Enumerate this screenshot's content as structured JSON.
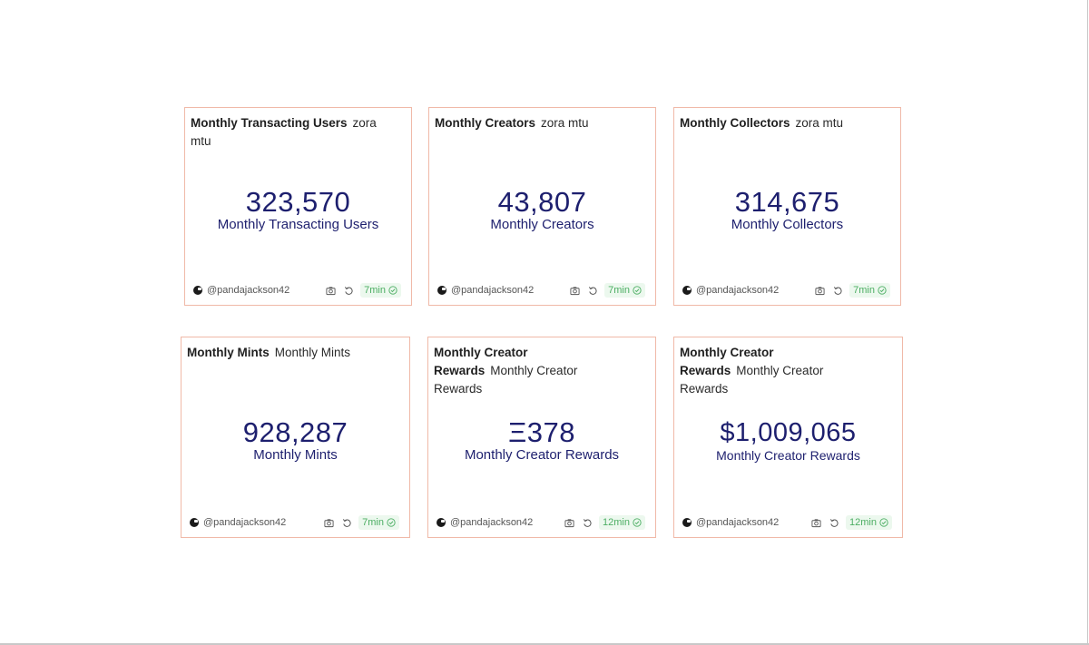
{
  "colors": {
    "border": "#f0b9a8",
    "value": "#1d1f6e",
    "badge_bg": "#ecf8ee",
    "badge_text": "#4cae63"
  },
  "cards": [
    {
      "title": "Monthly Transacting Users",
      "subtitle": "zora mtu",
      "value": "323,570",
      "label": "Monthly Transacting Users",
      "author": "@pandajackson42",
      "age": "7min"
    },
    {
      "title": "Monthly Creators",
      "subtitle": "zora mtu",
      "value": "43,807",
      "label": "Monthly Creators",
      "author": "@pandajackson42",
      "age": "7min"
    },
    {
      "title": "Monthly Collectors",
      "subtitle": "zora mtu",
      "value": "314,675",
      "label": "Monthly Collectors",
      "author": "@pandajackson42",
      "age": "7min"
    },
    {
      "title": "Monthly Mints",
      "subtitle": "Monthly Mints",
      "value": "928,287",
      "label": "Monthly Mints",
      "author": "@pandajackson42",
      "age": "7min"
    },
    {
      "title": "Monthly Creator Rewards",
      "subtitle": "Monthly Creator Rewards",
      "value": "Ξ378",
      "label": "Monthly Creator Rewards",
      "author": "@pandajackson42",
      "age": "12min"
    },
    {
      "title": "Monthly Creator Rewards",
      "subtitle": "Monthly Creator Rewards",
      "value": "$1,009,065",
      "label": "Monthly Creator Rewards",
      "author": "@pandajackson42",
      "age": "12min"
    }
  ],
  "icons": {
    "avatar": "user-avatar-icon",
    "screenshot": "camera-icon",
    "refresh": "refresh-icon",
    "status": "check-circle-icon"
  }
}
